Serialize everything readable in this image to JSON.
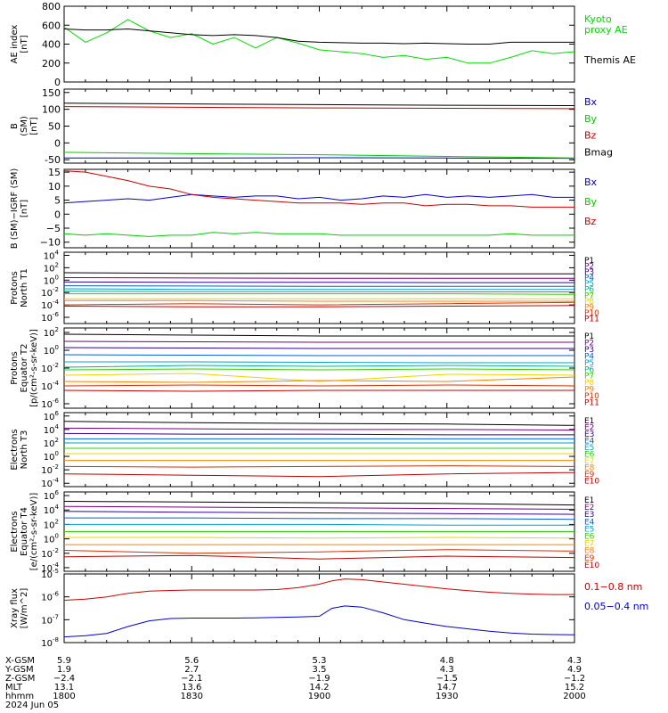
{
  "figure": {
    "date": "2024 Jun 05",
    "orbit_labels": [
      "X-GSM",
      "Y-GSM",
      "Z-GSM",
      "MLT",
      "hhmm"
    ],
    "orbit_rows": [
      [
        "5.9",
        "5.6",
        "5.3",
        "4.8",
        "4.3"
      ],
      [
        "1.9",
        "2.7",
        "3.5",
        "4.3",
        "4.9"
      ],
      [
        "−2.4",
        "−2.1",
        "−1.9",
        "−1.5",
        "−1.2"
      ],
      [
        "13.1",
        "13.6",
        "14.2",
        "14.7",
        "15.2"
      ],
      [
        "1800",
        "1830",
        "1900",
        "1930",
        "2000"
      ]
    ]
  },
  "chart_data": [
    {
      "type": "line",
      "scale": "linear",
      "ylabel": [
        "AE index",
        "[nT]"
      ],
      "yticks": [
        "0",
        "200",
        "400",
        "600",
        "800"
      ],
      "ylim": [
        0,
        800
      ],
      "x": [
        1800,
        1805,
        1810,
        1815,
        1820,
        1825,
        1830,
        1835,
        1840,
        1845,
        1850,
        1855,
        1900,
        1905,
        1910,
        1915,
        1920,
        1925,
        1930,
        1935,
        1940,
        1945,
        1950,
        1955,
        2000
      ],
      "series": [
        {
          "name": "Kyoto proxy AE",
          "color": "#00dd00",
          "values": [
            580,
            420,
            520,
            660,
            540,
            470,
            510,
            400,
            470,
            360,
            470,
            410,
            340,
            320,
            300,
            260,
            280,
            240,
            260,
            200,
            200,
            260,
            330,
            300,
            320
          ]
        },
        {
          "name": "Themis AE",
          "color": "#000000",
          "values": [
            560,
            550,
            550,
            560,
            540,
            520,
            500,
            490,
            500,
            490,
            470,
            430,
            420,
            415,
            410,
            410,
            405,
            410,
            405,
            400,
            400,
            420,
            420,
            420,
            420
          ]
        }
      ],
      "legend": [
        "Kyoto proxy AE",
        "Themis AE"
      ]
    },
    {
      "type": "line",
      "scale": "linear",
      "ylabel": [
        "B",
        "(SM)",
        "[nT]"
      ],
      "yticks": [
        "-50",
        "0",
        "50",
        "100",
        "150"
      ],
      "ylim": [
        -60,
        160
      ],
      "x": [
        1800,
        1830,
        1900,
        1930,
        2000
      ],
      "series": [
        {
          "name": "Bx",
          "color": "#0000cc",
          "values": [
            -45,
            -45,
            -44,
            -45,
            -46
          ]
        },
        {
          "name": "By",
          "color": "#00cc00",
          "values": [
            -28,
            -32,
            -35,
            -40,
            -45
          ]
        },
        {
          "name": "Bz",
          "color": "#cc0000",
          "values": [
            108,
            106,
            104,
            103,
            102
          ]
        },
        {
          "name": "Bmag",
          "color": "#000000",
          "values": [
            118,
            116,
            114,
            112,
            111
          ]
        }
      ],
      "legend": [
        "Bx",
        "By",
        "Bz",
        "Bmag"
      ]
    },
    {
      "type": "line",
      "scale": "linear",
      "ylabel": [
        "B (SM)−IGRF (SM)",
        "[nT]"
      ],
      "yticks": [
        "−10",
        "−5",
        "0",
        "5",
        "10",
        "15"
      ],
      "ylim": [
        -12,
        16
      ],
      "x": [
        1800,
        1805,
        1810,
        1815,
        1820,
        1825,
        1830,
        1835,
        1840,
        1845,
        1850,
        1855,
        1900,
        1905,
        1910,
        1915,
        1920,
        1925,
        1930,
        1935,
        1940,
        1945,
        1950,
        1955,
        2000
      ],
      "series": [
        {
          "name": "Bx",
          "color": "#0000cc",
          "values": [
            4,
            4.5,
            5,
            5.5,
            5,
            6,
            7,
            6.5,
            6,
            6.5,
            6.5,
            5.5,
            6,
            5,
            5.5,
            6.5,
            6,
            7,
            6,
            6.5,
            6,
            6.5,
            7,
            6,
            6
          ]
        },
        {
          "name": "By",
          "color": "#00cc00",
          "values": [
            -7,
            -7.5,
            -7,
            -7.5,
            -8,
            -7.5,
            -7.5,
            -6.5,
            -7,
            -6.5,
            -7,
            -7,
            -7,
            -7.5,
            -7.5,
            -7.5,
            -7.5,
            -7.5,
            -7.5,
            -7.5,
            -7.5,
            -7,
            -7.5,
            -7.5,
            -7.5
          ]
        },
        {
          "name": "Bz",
          "color": "#cc0000",
          "values": [
            15.5,
            15,
            13.5,
            12,
            10,
            9,
            7,
            6,
            5.5,
            5,
            4.5,
            4,
            4,
            4,
            3.5,
            4,
            4,
            3,
            3.5,
            3.5,
            3,
            3,
            2.5,
            2.5,
            2.5
          ]
        }
      ],
      "legend": [
        "Bx",
        "By",
        "Bz"
      ]
    },
    {
      "type": "line",
      "scale": "log",
      "ylabel": [
        "Protons",
        "North T1"
      ],
      "ytick_exp": [
        -6,
        -4,
        -2,
        0,
        2,
        4
      ],
      "ylim_exp": [
        -7,
        4.5
      ],
      "x": [
        1800,
        1830,
        1900,
        1930,
        2000
      ],
      "series": [
        {
          "name": "P1",
          "color": "#000000",
          "values_exp": [
            1.2,
            1.1,
            1.1,
            1.0,
            1.0
          ]
        },
        {
          "name": "P2",
          "color": "#7a0080",
          "values_exp": [
            0.4,
            0.35,
            0.3,
            0.3,
            0.3
          ]
        },
        {
          "name": "P3",
          "color": "#3000a0",
          "values_exp": [
            -0.3,
            -0.35,
            -0.35,
            -0.4,
            -0.4
          ]
        },
        {
          "name": "P4",
          "color": "#0060d0",
          "values_exp": [
            -0.9,
            -0.95,
            -1.0,
            -1.0,
            -1.0
          ]
        },
        {
          "name": "P5",
          "color": "#00a0d0",
          "values_exp": [
            -1.4,
            -1.5,
            -1.5,
            -1.5,
            -1.5
          ]
        },
        {
          "name": "P6",
          "color": "#00b090",
          "values_exp": [
            -1.8,
            -1.85,
            -1.85,
            -1.9,
            -1.9
          ]
        },
        {
          "name": "P7",
          "color": "#30d000",
          "values_exp": [
            -2.2,
            -2.2,
            -2.2,
            -2.2,
            -2.3
          ]
        },
        {
          "name": "P8",
          "color": "#f0d000",
          "values_exp": [
            -3.0,
            -3.0,
            -3.0,
            -3.0,
            -3.0
          ]
        },
        {
          "name": "P9",
          "color": "#ff8000",
          "values_exp": [
            -3.3,
            -3.3,
            -3.4,
            -3.4,
            -3.4
          ]
        },
        {
          "name": "P10",
          "color": "#d83000",
          "values_exp": [
            -4.0,
            -3.8,
            -4.0,
            -3.8,
            -3.6
          ]
        },
        {
          "name": "P11",
          "color": "#c00000",
          "values_exp": [
            -4.2,
            -4.3,
            -4.3,
            -4.2,
            -4.1
          ]
        }
      ],
      "legend": [
        "P1",
        "P2",
        "P3",
        "P4",
        "P5",
        "P6",
        "P7",
        "P8",
        "P9",
        "P10",
        "P11"
      ]
    },
    {
      "type": "line",
      "scale": "log",
      "ylabel": [
        "Protons",
        "Equator T2",
        "[p/(cm²-s-sr-keV)]"
      ],
      "ytick_exp": [
        -6,
        -4,
        -2,
        0,
        2
      ],
      "ylim_exp": [
        -6.5,
        2.5
      ],
      "x": [
        1800,
        1830,
        1900,
        1930,
        2000
      ],
      "series": [
        {
          "name": "P1",
          "color": "#000000",
          "values_exp": [
            1.8,
            1.7,
            1.6,
            1.6,
            1.6
          ]
        },
        {
          "name": "P2",
          "color": "#7a0080",
          "values_exp": [
            1.0,
            0.95,
            0.9,
            0.9,
            0.9
          ]
        },
        {
          "name": "P3",
          "color": "#3000a0",
          "values_exp": [
            0.3,
            0.25,
            0.2,
            0.2,
            0.2
          ]
        },
        {
          "name": "P4",
          "color": "#0060d0",
          "values_exp": [
            -0.5,
            -0.55,
            -0.6,
            -0.6,
            -0.6
          ]
        },
        {
          "name": "P5",
          "color": "#00a0d0",
          "values_exp": [
            -1.3,
            -1.3,
            -1.35,
            -1.4,
            -1.4
          ]
        },
        {
          "name": "P6",
          "color": "#00b090",
          "values_exp": [
            -1.9,
            -1.7,
            -1.8,
            -1.7,
            -1.8
          ]
        },
        {
          "name": "P7",
          "color": "#30d000",
          "values_exp": [
            -2.2,
            -2.1,
            -2.2,
            -2.1,
            -2.2
          ]
        },
        {
          "name": "P8",
          "color": "#f0d000",
          "values_exp": [
            -2.8,
            -2.6,
            -3.5,
            -2.7,
            -2.8
          ]
        },
        {
          "name": "P9",
          "color": "#ff8000",
          "values_exp": [
            -3.5,
            -3.6,
            -3.4,
            -3.5,
            -3.0
          ]
        },
        {
          "name": "P10",
          "color": "#d83000",
          "values_exp": [
            -4.0,
            -3.9,
            -4.0,
            -3.9,
            -4.0
          ]
        },
        {
          "name": "P11",
          "color": "#c00000",
          "values_exp": [
            -4.5,
            -4.6,
            -4.5,
            -4.5,
            -4.5
          ]
        }
      ],
      "legend": [
        "P1",
        "P2",
        "P3",
        "P4",
        "P5",
        "P6",
        "P7",
        "P8",
        "P9",
        "P10",
        "P11"
      ]
    },
    {
      "type": "line",
      "scale": "log",
      "ylabel": [
        "Electrons",
        "North T3"
      ],
      "ytick_exp": [
        -4,
        -2,
        0,
        2,
        4,
        6
      ],
      "ylim_exp": [
        -4.5,
        6.5
      ],
      "x": [
        1800,
        1830,
        1900,
        1930,
        2000
      ],
      "series": [
        {
          "name": "E1",
          "color": "#000000",
          "values_exp": [
            5.2,
            5.0,
            4.9,
            4.8,
            4.6
          ]
        },
        {
          "name": "E2",
          "color": "#7a0080",
          "values_exp": [
            4.2,
            4.1,
            4.0,
            4.0,
            3.9
          ]
        },
        {
          "name": "E3",
          "color": "#3000a0",
          "values_exp": [
            3.4,
            3.3,
            3.3,
            3.2,
            3.2
          ]
        },
        {
          "name": "E4",
          "color": "#0060d0",
          "values_exp": [
            2.6,
            2.6,
            2.6,
            2.6,
            2.6
          ]
        },
        {
          "name": "E5",
          "color": "#00a0d0",
          "values_exp": [
            2.0,
            2.0,
            2.0,
            2.0,
            2.0
          ]
        },
        {
          "name": "E6",
          "color": "#30d000",
          "values_exp": [
            1.2,
            1.2,
            1.2,
            1.2,
            1.2
          ]
        },
        {
          "name": "E7",
          "color": "#f0d000",
          "values_exp": [
            0.4,
            0.4,
            0.4,
            0.4,
            0.4
          ]
        },
        {
          "name": "E8",
          "color": "#ff8000",
          "values_exp": [
            -0.6,
            -0.6,
            -0.6,
            -0.6,
            -0.6
          ]
        },
        {
          "name": "E9",
          "color": "#d83000",
          "values_exp": [
            -1.5,
            -1.6,
            -1.5,
            -1.4,
            -1.5
          ]
        },
        {
          "name": "E10",
          "color": "#c00000",
          "values_exp": [
            -2.6,
            -2.8,
            -3.0,
            -2.6,
            -2.4
          ]
        }
      ],
      "legend": [
        "E1",
        "E2",
        "E3",
        "E4",
        "E5",
        "E6",
        "E7",
        "E8",
        "E9",
        "E10"
      ]
    },
    {
      "type": "line",
      "scale": "log",
      "ylabel": [
        "Electrons",
        "Equator T4",
        "[e/(cm²-s-sr-keV)]"
      ],
      "ytick_exp": [
        -4,
        -2,
        0,
        2,
        4,
        6
      ],
      "ylim_exp": [
        -4.5,
        6.5
      ],
      "x": [
        1800,
        1830,
        1900,
        1930,
        2000
      ],
      "series": [
        {
          "name": "E1",
          "color": "#000000",
          "values_exp": [
            5.2,
            5.1,
            5.0,
            4.9,
            4.7
          ]
        },
        {
          "name": "E2",
          "color": "#7a0080",
          "values_exp": [
            4.5,
            4.4,
            4.3,
            4.2,
            4.1
          ]
        },
        {
          "name": "E3",
          "color": "#3000a0",
          "values_exp": [
            3.8,
            3.7,
            3.6,
            3.5,
            3.4
          ]
        },
        {
          "name": "E4",
          "color": "#0060d0",
          "values_exp": [
            2.9,
            2.9,
            2.8,
            2.8,
            2.7
          ]
        },
        {
          "name": "E5",
          "color": "#00a0d0",
          "values_exp": [
            2.0,
            2.0,
            2.0,
            1.9,
            1.9
          ]
        },
        {
          "name": "E6",
          "color": "#30d000",
          "values_exp": [
            1.0,
            1.0,
            1.0,
            1.0,
            1.0
          ]
        },
        {
          "name": "E7",
          "color": "#f0d000",
          "values_exp": [
            0.2,
            0.2,
            0.1,
            0.2,
            0.1
          ]
        },
        {
          "name": "E8",
          "color": "#ff8000",
          "values_exp": [
            -0.8,
            -0.8,
            -0.8,
            -0.8,
            -0.8
          ]
        },
        {
          "name": "E9",
          "color": "#d83000",
          "values_exp": [
            -1.6,
            -2.0,
            -1.8,
            -1.5,
            -1.7
          ]
        },
        {
          "name": "E10",
          "color": "#c00000",
          "values_exp": [
            -2.5,
            -2.3,
            -2.8,
            -2.4,
            -2.6
          ]
        }
      ],
      "legend": [
        "E1",
        "E2",
        "E3",
        "E4",
        "E5",
        "E6",
        "E7",
        "E8",
        "E9",
        "E10"
      ]
    },
    {
      "type": "line",
      "scale": "log",
      "ylabel": [
        "Xray flux",
        "[W/m^2]"
      ],
      "ytick_exp": [
        -8,
        -7,
        -6,
        -5
      ],
      "ylim_exp": [
        -8,
        -5
      ],
      "x": [
        1800,
        1805,
        1810,
        1815,
        1820,
        1825,
        1830,
        1835,
        1840,
        1845,
        1850,
        1855,
        1900,
        1903,
        1906,
        1910,
        1915,
        1920,
        1925,
        1930,
        1935,
        1940,
        1945,
        1950,
        1955,
        2000
      ],
      "series": [
        {
          "name": "0.1−0.8 nm",
          "color": "#cc0000",
          "values_exp": [
            -6.15,
            -6.1,
            -6.0,
            -5.85,
            -5.75,
            -5.72,
            -5.7,
            -5.7,
            -5.7,
            -5.7,
            -5.68,
            -5.6,
            -5.45,
            -5.3,
            -5.22,
            -5.25,
            -5.35,
            -5.45,
            -5.55,
            -5.65,
            -5.73,
            -5.8,
            -5.85,
            -5.88,
            -5.9,
            -5.9
          ]
        },
        {
          "name": "0.05−0.4 nm",
          "color": "#0000cc",
          "values_exp": [
            -7.75,
            -7.7,
            -7.6,
            -7.3,
            -7.05,
            -6.95,
            -6.93,
            -6.93,
            -6.93,
            -6.92,
            -6.9,
            -6.88,
            -6.85,
            -6.5,
            -6.4,
            -6.45,
            -6.7,
            -7.0,
            -7.15,
            -7.3,
            -7.4,
            -7.5,
            -7.58,
            -7.63,
            -7.65,
            -7.66
          ]
        }
      ],
      "legend": [
        "0.1−0.8 nm",
        "0.05−0.4 nm"
      ]
    }
  ]
}
